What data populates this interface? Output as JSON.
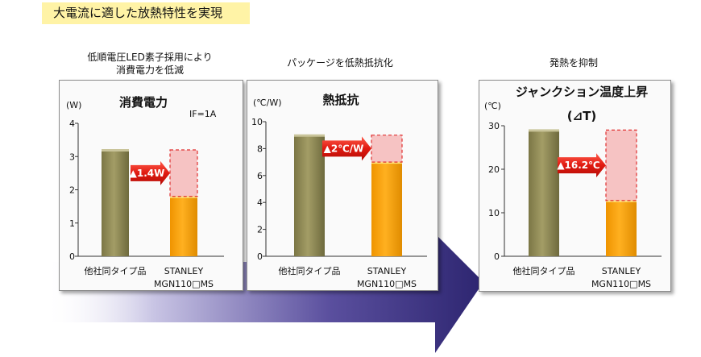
{
  "header": {
    "title": "大電流に適した放熱特性を実現"
  },
  "captions": [
    [
      "低順電圧LED素子採用により",
      "消費電力を低減"
    ],
    [
      "パッケージを低熱抵抗化"
    ],
    [
      "発熱を抑制"
    ]
  ],
  "colors": {
    "competitor_bar": "#8f8a55",
    "stanley_bar": "#ffa500",
    "reduction_box_fill": "#f5b8b8",
    "reduction_box_stroke": "#e03030",
    "arrow": "#e02020",
    "flow_arrow": "#3d3480"
  },
  "chart_data": [
    {
      "type": "bar",
      "title": "消費電力",
      "unit_label": "(W)",
      "note": "IF=1A",
      "categories": [
        "他社同タイプ品",
        "STANLEY MGN110□MS"
      ],
      "values": [
        3.2,
        1.8
      ],
      "reduction": {
        "from": 3.2,
        "to": 1.8,
        "label": "▲1.4W"
      },
      "ylim": [
        0,
        4
      ],
      "yticks": [
        "0",
        "1",
        "2",
        "3",
        "4"
      ]
    },
    {
      "type": "bar",
      "title": "熱抵抗",
      "unit_label": "(℃/W)",
      "categories": [
        "他社同タイプ品",
        "STANLEY MGN110□MS"
      ],
      "values": [
        9,
        7
      ],
      "reduction": {
        "from": 9,
        "to": 7,
        "label": "▲2℃/W"
      },
      "ylim": [
        0,
        10
      ],
      "yticks": [
        "0",
        "2",
        "4",
        "6",
        "8",
        "10"
      ]
    },
    {
      "type": "bar",
      "title": "ジャンクション温度上昇",
      "subtitle": "(⊿T)",
      "unit_label": "(℃)",
      "categories": [
        "他社同タイプ品",
        "STANLEY MGN110□MS"
      ],
      "values": [
        29,
        12.8
      ],
      "reduction": {
        "from": 29,
        "to": 12.8,
        "label": "▲16.2℃"
      },
      "ylim": [
        0,
        30
      ],
      "yticks": [
        "0",
        "10",
        "20",
        "30"
      ]
    }
  ]
}
